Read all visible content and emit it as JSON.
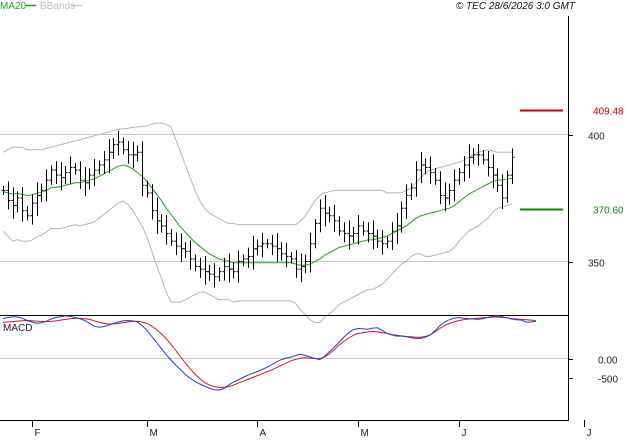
{
  "header": {
    "legend_ma": "MA20",
    "legend_bb": "BBands",
    "copyright": "© TEC 28/6/2026 3:0 GMT"
  },
  "colors": {
    "ma": "#1aa31a",
    "bands": "#b4b4b4",
    "price": "#000000",
    "macd": "#1f3fd0",
    "signal": "#d81a1a",
    "resistance": "#c80000",
    "support": "#0a8a0a"
  },
  "chart_data": [
    {
      "type": "ohlc",
      "ylim": [
        335,
        420
      ],
      "ticks": [
        {
          "label": "400",
          "value": 400
        },
        {
          "label": "350",
          "value": 350
        }
      ],
      "levels": [
        {
          "name": "resistance",
          "label": "409.48",
          "value": 409.48,
          "color": "#c80000"
        },
        {
          "name": "support",
          "label": "370.60",
          "value": 370.6,
          "color": "#0a8a0a"
        }
      ],
      "month_labels": [
        {
          "label": "F",
          "index": 6
        },
        {
          "label": "M",
          "index": 30
        },
        {
          "label": "A",
          "index": 53
        },
        {
          "label": "M",
          "index": 74
        },
        {
          "label": "J",
          "index": 95
        },
        {
          "label": "J",
          "index": 121
        }
      ],
      "close": [
        378,
        374,
        372,
        375,
        370,
        368,
        373,
        376,
        378,
        382,
        386,
        384,
        383,
        385,
        387,
        386,
        382,
        381,
        384,
        386,
        388,
        390,
        393,
        396,
        397,
        394,
        392,
        392,
        393,
        380,
        377,
        370,
        366,
        364,
        361,
        358,
        356,
        355,
        354,
        351,
        348,
        347,
        346,
        345,
        344,
        346,
        348,
        347,
        346,
        350,
        351,
        352,
        355,
        356,
        357,
        357,
        356,
        355,
        353,
        352,
        351,
        347,
        348,
        350,
        357,
        365,
        371,
        369,
        368,
        366,
        362,
        361,
        360,
        361,
        364,
        362,
        361,
        360,
        358,
        357,
        358,
        362,
        364,
        371,
        376,
        379,
        386,
        388,
        387,
        385,
        382,
        376,
        375,
        378,
        382,
        385,
        388,
        391,
        392,
        392,
        390,
        387,
        384,
        380,
        375,
        384,
        391
      ],
      "ma20": [
        377.5,
        377,
        376.5,
        376.8,
        376.5,
        376,
        376.2,
        376.8,
        377.2,
        378,
        379,
        379.2,
        379.5,
        380,
        380.5,
        381,
        381,
        381.5,
        382,
        382.5,
        383.5,
        384.5,
        385.5,
        386.5,
        387.5,
        388,
        387.5,
        386.5,
        385,
        383.5,
        381.5,
        379,
        376.5,
        374,
        371,
        368.5,
        366,
        363.5,
        361.5,
        359.5,
        357.5,
        356,
        354.5,
        353,
        352,
        351,
        350.5,
        350,
        349.5,
        349.5,
        349.5,
        349.5,
        349.5,
        349.5,
        349.5,
        349.5,
        349.5,
        349.5,
        349.5,
        349.5,
        349.5,
        349,
        348.5,
        348.5,
        349,
        350,
        351,
        352.5,
        353.5,
        354.5,
        355.5,
        356,
        356.5,
        357,
        357.5,
        358,
        358.5,
        358.5,
        359,
        359.5,
        360,
        361,
        362,
        363,
        364,
        365.5,
        367,
        368,
        368.5,
        369,
        369.5,
        370,
        370.5,
        371,
        372,
        373.5,
        375,
        376.5,
        377.5,
        378.5,
        379.5,
        380.5,
        381.5,
        382,
        382.2,
        382.5,
        382.8
      ],
      "bb_upper": [
        393,
        394,
        395,
        395,
        395,
        394,
        394,
        394,
        394,
        394.5,
        395,
        395.5,
        396,
        396.5,
        397,
        397.5,
        398,
        398.5,
        399,
        399.5,
        400,
        400.5,
        401,
        401.5,
        402,
        402.2,
        402.5,
        402.8,
        403,
        403.2,
        403.4,
        404,
        404.5,
        404.5,
        404,
        403,
        398,
        393,
        388,
        383,
        378,
        374,
        371,
        369,
        368,
        367,
        366,
        365,
        365,
        364.5,
        364.5,
        364.5,
        364.5,
        364.5,
        364.5,
        364.5,
        364.5,
        364.5,
        364.5,
        364.5,
        364.5,
        364.5,
        366,
        368,
        371,
        374,
        376,
        377,
        377.5,
        378,
        378,
        378,
        378,
        378,
        378,
        378,
        378,
        378,
        378,
        378,
        377,
        377,
        377,
        377,
        378,
        379,
        381,
        383,
        385,
        386,
        386.5,
        387,
        387.5,
        388,
        388.5,
        389,
        390,
        391,
        392,
        393,
        393.5,
        394,
        393.5,
        393,
        393,
        393,
        393
      ]
    },
    {
      "type": "line",
      "name": "MACD",
      "ylim": [
        -1000,
        1500
      ],
      "ticks": [
        {
          "label": "0.00",
          "value": 0
        },
        {
          "label": "-500",
          "value": -500
        }
      ],
      "macd": [
        1050,
        1080,
        1100,
        1090,
        1060,
        1000,
        960,
        930,
        940,
        980,
        1040,
        1080,
        1100,
        1120,
        1110,
        1080,
        1050,
        1000,
        930,
        850,
        820,
        840,
        880,
        920,
        960,
        990,
        1000,
        990,
        960,
        860,
        740,
        580,
        420,
        260,
        100,
        -40,
        -180,
        -300,
        -420,
        -520,
        -600,
        -670,
        -730,
        -780,
        -820,
        -830,
        -790,
        -700,
        -620,
        -560,
        -500,
        -440,
        -390,
        -340,
        -290,
        -230,
        -160,
        -90,
        -30,
        10,
        40,
        80,
        110,
        80,
        40,
        0,
        -30,
        60,
        180,
        300,
        420,
        560,
        680,
        760,
        790,
        780,
        770,
        800,
        810,
        740,
        660,
        620,
        590,
        590,
        570,
        550,
        530,
        530,
        560,
        620,
        730,
        860,
        960,
        1020,
        1060,
        1080,
        1060,
        1050,
        1040,
        1030,
        1050,
        1080,
        1110,
        1120,
        1100,
        1070,
        1040,
        1020,
        1010,
        960,
        960,
        980
      ],
      "signal": [
        950,
        960,
        970,
        985,
        995,
        1000,
        995,
        985,
        975,
        970,
        975,
        990,
        1010,
        1030,
        1045,
        1055,
        1055,
        1050,
        1030,
        995,
        955,
        925,
        910,
        910,
        920,
        940,
        960,
        975,
        980,
        960,
        920,
        850,
        760,
        650,
        520,
        370,
        210,
        40,
        -120,
        -270,
        -410,
        -530,
        -630,
        -700,
        -740,
        -760,
        -760,
        -740,
        -700,
        -650,
        -600,
        -550,
        -500,
        -450,
        -400,
        -350,
        -300,
        -240,
        -180,
        -120,
        -60,
        -20,
        10,
        20,
        10,
        0,
        0,
        40,
        120,
        230,
        350,
        450,
        540,
        610,
        660,
        680,
        700,
        710,
        700,
        680,
        660,
        630,
        610,
        595,
        580,
        570,
        560,
        560,
        580,
        620,
        700,
        790,
        870,
        920,
        960,
        1000,
        1020,
        1040,
        1050,
        1060,
        1070,
        1080,
        1090,
        1090,
        1080,
        1070,
        1050,
        1040,
        1030,
        1020,
        1010,
        1000
      ]
    }
  ]
}
